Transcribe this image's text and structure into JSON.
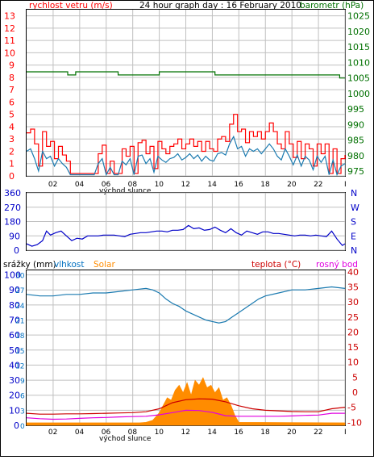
{
  "colors": {
    "wind_red": "#ff0000",
    "wind_blue": "#1a7ab0",
    "pressure_green": "#007000",
    "direction_blue": "#0000c8",
    "humidity_blue": "#1a7ab0",
    "solar_orange": "#ff8c00",
    "temp_red": "#cc0000",
    "dew_magenta": "#e000e0",
    "rain_blue": "#0000c8",
    "grid": "#c0c0c0",
    "axis_text_red": "#ff0000",
    "axis_text_green": "#007000",
    "axis_text_blue": "#0070c0",
    "dark_red": "#cc0000"
  },
  "header": {
    "wind_label": "rychlost vetru (m/s)",
    "title": "24 hour graph day : 16 February 2010",
    "pressure_label": "barometr (hPa)"
  },
  "panel_bottom_labels": {
    "rain": "srážky (mm)",
    "humidity": "vlhkost",
    "solar": "Solar",
    "temp": "teplota (°C)",
    "dew": "rosný bod"
  },
  "sunrise_label": "východ slunce",
  "x_ticks": [
    "02",
    "04",
    "06",
    "08",
    "10",
    "12",
    "14",
    "16",
    "18",
    "20",
    "22",
    "I"
  ],
  "direction_letters": [
    "N",
    "W",
    "S",
    "E",
    "N"
  ],
  "chart_data": [
    {
      "type": "line",
      "x_unit": "hour",
      "xlim": [
        0,
        24
      ],
      "left_axis": {
        "label": "rychlost vetru (m/s)",
        "ticks": [
          0,
          1,
          2,
          3,
          4,
          5,
          6,
          7,
          8,
          9,
          10,
          11,
          12,
          13
        ],
        "ylim": [
          0,
          13.5
        ]
      },
      "right_axis": {
        "label": "barometr (hPa)",
        "ticks": [
          975,
          980,
          985,
          990,
          995,
          1000,
          1005,
          1010,
          1015,
          1020,
          1025
        ],
        "ylim": [
          973.5,
          1027
        ]
      },
      "series": [
        {
          "role": "gust",
          "axis": "left",
          "x": [
            0,
            0.3,
            0.6,
            0.9,
            1.2,
            1.5,
            1.8,
            2.1,
            2.4,
            2.7,
            3.0,
            3.3,
            3.6,
            3.9,
            4.2,
            4.5,
            4.8,
            5.1,
            5.4,
            5.7,
            6.0,
            6.3,
            6.6,
            6.9,
            7.2,
            7.5,
            7.8,
            8.1,
            8.4,
            8.7,
            9.0,
            9.3,
            9.6,
            9.9,
            10.2,
            10.5,
            10.8,
            11.1,
            11.4,
            11.7,
            12.0,
            12.3,
            12.6,
            12.9,
            13.2,
            13.5,
            13.8,
            14.1,
            14.4,
            14.7,
            15.0,
            15.3,
            15.6,
            15.9,
            16.2,
            16.5,
            16.8,
            17.1,
            17.4,
            17.7,
            18.0,
            18.3,
            18.6,
            18.9,
            19.2,
            19.5,
            19.8,
            20.1,
            20.4,
            20.7,
            21.0,
            21.3,
            21.6,
            21.9,
            22.2,
            22.5,
            22.8,
            23.1,
            23.4,
            23.7,
            24.0
          ],
          "y": [
            3.5,
            3.8,
            2.6,
            0.8,
            3.6,
            2.4,
            2.8,
            1.4,
            2.4,
            1.7,
            1.2,
            0.2,
            0.2,
            0.2,
            0.2,
            0.2,
            0.2,
            0.2,
            1.8,
            2.5,
            0.2,
            1.2,
            0.2,
            0.2,
            2.2,
            1.6,
            2.4,
            0.2,
            2.7,
            2.9,
            1.8,
            2.4,
            0.6,
            2.8,
            2.2,
            1.8,
            2.4,
            2.6,
            3.0,
            2.2,
            2.6,
            3.0,
            2.4,
            2.8,
            2.0,
            2.8,
            2.2,
            2.0,
            3.0,
            3.2,
            2.8,
            4.2,
            5.0,
            3.6,
            3.8,
            2.7,
            3.6,
            3.2,
            3.6,
            3.0,
            3.6,
            4.3,
            3.6,
            2.6,
            2.2,
            3.6,
            2.6,
            1.5,
            2.8,
            1.4,
            2.6,
            2.2,
            0.8,
            2.6,
            1.8,
            2.6,
            0.2,
            2.2,
            0.2,
            1.4,
            1.7
          ]
        },
        {
          "role": "average",
          "axis": "left",
          "x": [
            0,
            0.3,
            0.6,
            0.9,
            1.2,
            1.5,
            1.8,
            2.1,
            2.4,
            2.7,
            3.0,
            3.3,
            3.6,
            3.9,
            4.2,
            4.5,
            4.8,
            5.1,
            5.4,
            5.7,
            6.0,
            6.3,
            6.6,
            6.9,
            7.2,
            7.5,
            7.8,
            8.1,
            8.4,
            8.7,
            9.0,
            9.3,
            9.6,
            9.9,
            10.2,
            10.5,
            10.8,
            11.1,
            11.4,
            11.7,
            12.0,
            12.3,
            12.6,
            12.9,
            13.2,
            13.5,
            13.8,
            14.1,
            14.4,
            14.7,
            15.0,
            15.3,
            15.6,
            15.9,
            16.2,
            16.5,
            16.8,
            17.1,
            17.4,
            17.7,
            18.0,
            18.3,
            18.6,
            18.9,
            19.2,
            19.5,
            19.8,
            20.1,
            20.4,
            20.7,
            21.0,
            21.3,
            21.6,
            21.9,
            22.2,
            22.5,
            22.8,
            23.1,
            23.4,
            23.7,
            24.0
          ],
          "y": [
            2.0,
            2.2,
            1.4,
            0.4,
            2.0,
            1.4,
            1.6,
            0.8,
            1.4,
            1.0,
            0.7,
            0.1,
            0.1,
            0.1,
            0.1,
            0.1,
            0.1,
            0.1,
            1.0,
            1.4,
            0.1,
            0.7,
            0.1,
            0.1,
            1.2,
            0.9,
            1.4,
            0.1,
            1.6,
            1.7,
            1.0,
            1.4,
            0.3,
            1.6,
            1.3,
            1.1,
            1.4,
            1.5,
            1.8,
            1.3,
            1.5,
            1.8,
            1.4,
            1.7,
            1.2,
            1.6,
            1.3,
            1.2,
            1.8,
            1.9,
            1.7,
            2.6,
            3.2,
            2.2,
            2.4,
            1.6,
            2.2,
            2.0,
            2.2,
            1.8,
            2.2,
            2.6,
            2.2,
            1.6,
            1.3,
            2.2,
            1.6,
            0.9,
            1.7,
            0.8,
            1.6,
            1.3,
            0.5,
            1.6,
            1.1,
            1.6,
            0.1,
            1.3,
            0.1,
            0.8,
            1.0
          ]
        },
        {
          "role": "pressure",
          "axis": "right",
          "x": [
            0,
            3.0,
            3.1,
            3.6,
            3.7,
            6.8,
            6.9,
            9.8,
            10.0,
            14.0,
            14.2,
            23.5,
            23.6,
            24.0
          ],
          "y": [
            1007,
            1007,
            1006,
            1006,
            1007,
            1007,
            1006,
            1006,
            1007,
            1007,
            1006,
            1006,
            1005,
            1005
          ]
        }
      ]
    },
    {
      "type": "line",
      "x_unit": "hour",
      "xlim": [
        0,
        24
      ],
      "y_unit": "degrees",
      "left_axis": {
        "ticks": [
          0,
          90,
          180,
          270,
          360
        ],
        "ylim": [
          0,
          360
        ]
      },
      "series": [
        {
          "role": "wind direction",
          "x": [
            0,
            0.4,
            0.8,
            1.2,
            1.5,
            1.8,
            2.2,
            2.6,
            3.0,
            3.4,
            3.8,
            4.2,
            4.6,
            5.0,
            5.4,
            5.8,
            6.2,
            6.6,
            7.0,
            7.4,
            7.8,
            8.2,
            8.6,
            9.0,
            9.4,
            9.8,
            10.2,
            10.6,
            11.0,
            11.4,
            11.8,
            12.2,
            12.6,
            13.0,
            13.4,
            13.8,
            14.2,
            14.6,
            15.0,
            15.4,
            15.8,
            16.2,
            16.6,
            17.0,
            17.4,
            17.8,
            18.2,
            18.6,
            19.0,
            19.4,
            19.8,
            20.2,
            20.6,
            21.0,
            21.4,
            21.8,
            22.2,
            22.6,
            23.0,
            23.4,
            23.8,
            24.0
          ],
          "y": [
            40,
            25,
            35,
            60,
            120,
            95,
            110,
            120,
            90,
            60,
            75,
            70,
            90,
            90,
            90,
            95,
            95,
            95,
            90,
            85,
            100,
            105,
            110,
            110,
            115,
            120,
            120,
            115,
            125,
            125,
            130,
            155,
            135,
            140,
            125,
            130,
            145,
            125,
            110,
            135,
            110,
            95,
            120,
            110,
            100,
            115,
            115,
            105,
            105,
            100,
            95,
            90,
            95,
            95,
            90,
            95,
            90,
            85,
            120,
            70,
            30,
            40
          ]
        }
      ]
    },
    {
      "type": "line",
      "x_unit": "hour",
      "xlim": [
        0,
        24
      ],
      "left_axis_outer": {
        "label": "srážky (mm)",
        "ticks": [
          0,
          10,
          20,
          30,
          40,
          50,
          60,
          70,
          80,
          90,
          100
        ],
        "ylim": [
          0,
          103
        ]
      },
      "left_axis_inner": {
        "label": "vlhkost",
        "ticks": [
          0,
          3,
          6,
          9,
          12,
          15,
          18,
          21,
          24,
          27,
          30
        ],
        "ylim": [
          0,
          30.9
        ]
      },
      "right_axis": {
        "label": "teplota (°C)",
        "ticks": [
          -10,
          -5,
          0,
          5,
          10,
          15,
          20,
          25,
          30,
          35,
          40
        ],
        "ylim": [
          -11,
          40.5
        ]
      },
      "series": [
        {
          "role": "humidity",
          "axis": "outer_left",
          "x": [
            0,
            1,
            2,
            3,
            4,
            5,
            6,
            7,
            8,
            9,
            9.5,
            10,
            10.5,
            11,
            11.5,
            12,
            12.5,
            13,
            13.5,
            14,
            14.5,
            15,
            15.5,
            16,
            16.5,
            17,
            17.5,
            18,
            19,
            20,
            21,
            22,
            23,
            24
          ],
          "y": [
            87,
            86,
            86,
            87,
            87,
            88,
            88,
            89,
            90,
            91,
            90,
            88,
            84,
            81,
            79,
            76,
            74,
            72,
            70,
            69,
            68,
            69,
            72,
            75,
            78,
            81,
            84,
            86,
            88,
            90,
            90,
            91,
            92,
            91
          ]
        },
        {
          "role": "temperature",
          "axis": "right",
          "x": [
            0,
            1,
            2,
            3,
            4,
            5,
            6,
            7,
            8,
            9,
            10,
            11,
            12,
            13,
            14,
            15,
            16,
            17,
            18,
            19,
            20,
            21,
            22,
            23,
            24
          ],
          "y": [
            -7,
            -7.3,
            -7.3,
            -7.2,
            -7.2,
            -7.1,
            -7.0,
            -6.9,
            -6.8,
            -6.5,
            -5.5,
            -3.5,
            -2.5,
            -2.2,
            -2.3,
            -3.2,
            -4.5,
            -5.5,
            -6.0,
            -6.2,
            -6.4,
            -6.5,
            -6.5,
            -5.5,
            -5.0
          ]
        },
        {
          "role": "dew point",
          "axis": "right",
          "x": [
            0,
            1,
            2,
            3,
            4,
            5,
            6,
            7,
            8,
            9,
            10,
            11,
            12,
            13,
            14,
            15,
            16,
            17,
            18,
            19,
            20,
            21,
            22,
            23,
            24
          ],
          "y": [
            -8.5,
            -8.8,
            -9.0,
            -8.9,
            -8.7,
            -8.5,
            -8.4,
            -8.2,
            -8.1,
            -8.0,
            -7.5,
            -6.8,
            -6.0,
            -6.1,
            -6.7,
            -7.8,
            -8.0,
            -8.0,
            -8.0,
            -8.0,
            -7.9,
            -7.7,
            -7.6,
            -7.0,
            -7.0
          ]
        },
        {
          "role": "solar",
          "axis": "inner_left",
          "x": [
            0,
            8.5,
            9.0,
            9.5,
            10.0,
            10.3,
            10.6,
            10.9,
            11.2,
            11.5,
            11.8,
            12.1,
            12.4,
            12.7,
            13.0,
            13.3,
            13.6,
            13.9,
            14.2,
            14.5,
            14.8,
            15.1,
            15.4,
            15.7,
            16.0,
            24
          ],
          "y": [
            0.5,
            0.5,
            0.6,
            1.0,
            2.5,
            4.0,
            5.5,
            5.0,
            7.0,
            8.0,
            6.5,
            8.5,
            6.0,
            9.0,
            8.0,
            9.5,
            7.5,
            8.0,
            6.5,
            7.5,
            5.0,
            5.5,
            4.0,
            2.0,
            0.6,
            0.5
          ]
        }
      ]
    }
  ]
}
